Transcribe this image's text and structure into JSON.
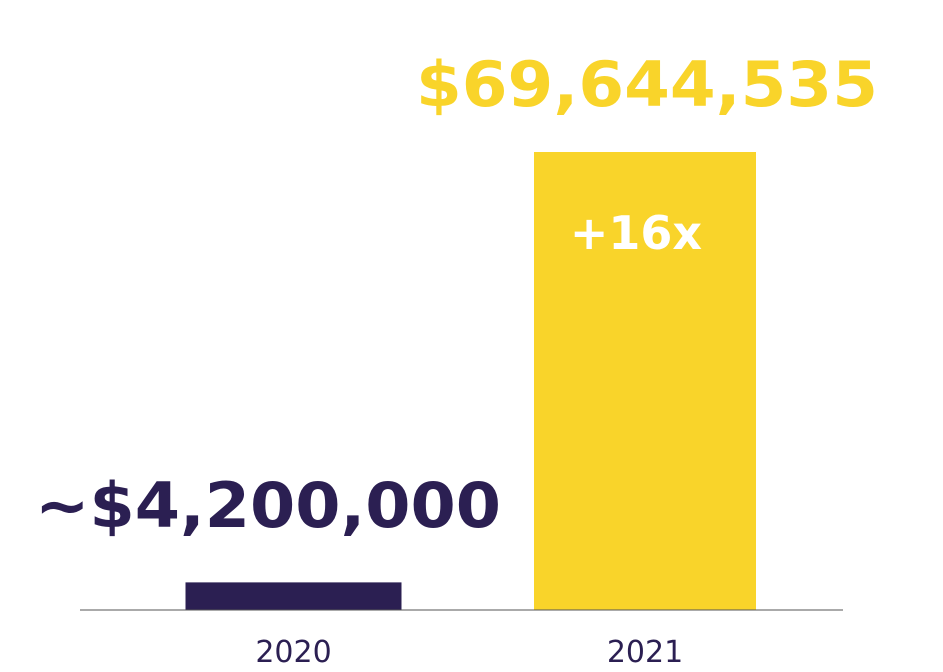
{
  "chart_data": {
    "type": "bar",
    "categories": [
      "2020",
      "2021"
    ],
    "values": [
      4200000,
      69644535
    ],
    "data_labels": [
      "~$4,200,000",
      "$69,644,535"
    ],
    "annotation": "+16x",
    "ylim": [
      0,
      80000000
    ],
    "grid": false,
    "legend": "none",
    "colors": {
      "bars": [
        "#2b1f52",
        "#f9d42a"
      ],
      "labels": [
        "#2b1f52",
        "#f9d42a"
      ],
      "annotation": "#ffffff",
      "axis": "#555555",
      "tick_text": "#2b1f52"
    }
  }
}
